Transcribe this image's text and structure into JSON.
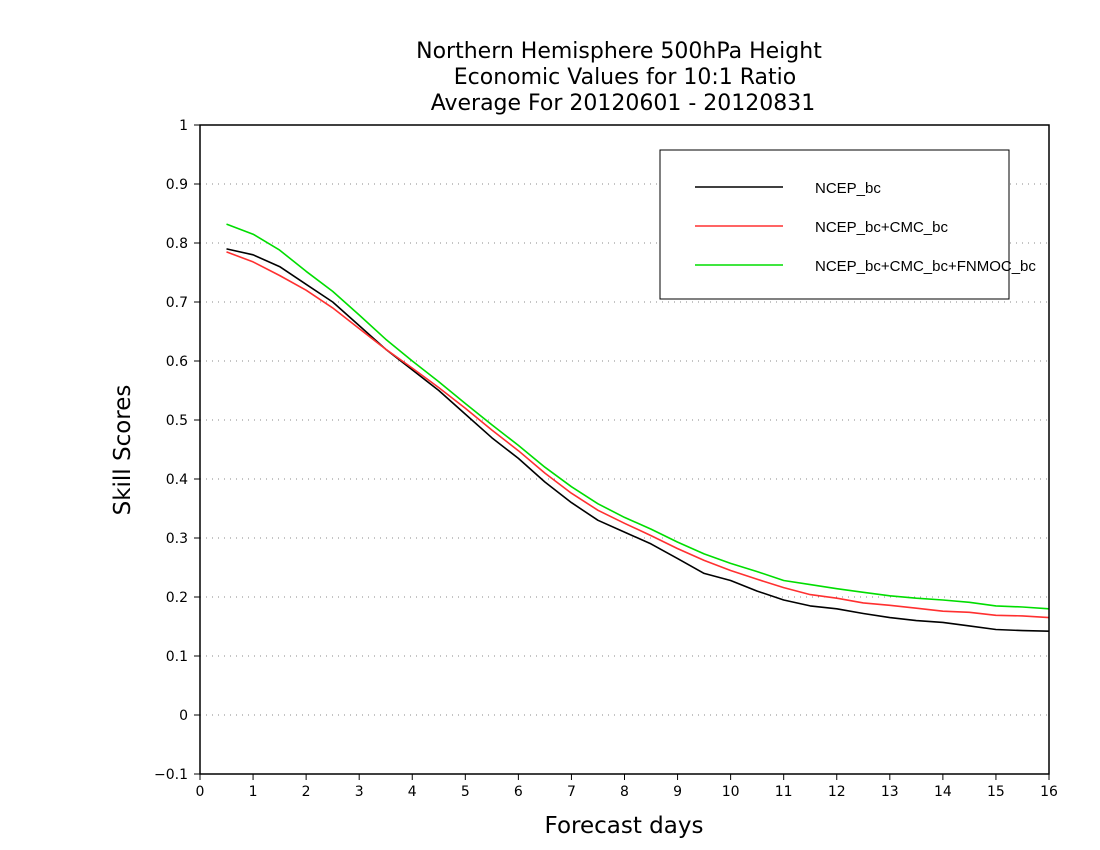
{
  "chart_data": {
    "type": "line",
    "title_lines": [
      "Northern Hemisphere 500hPa Height",
      "Economic Values for 10:1 Ratio",
      "Average For 20120601 - 20120831"
    ],
    "xlabel": "Forecast days",
    "ylabel": "Skill Scores",
    "xlim": [
      0,
      16
    ],
    "ylim": [
      -0.1,
      1
    ],
    "xticks": [
      "0",
      "1",
      "2",
      "3",
      "4",
      "5",
      "6",
      "7",
      "8",
      "9",
      "10",
      "11",
      "12",
      "13",
      "14",
      "15",
      "16"
    ],
    "yticks": [
      "−0.1",
      "0",
      "0.1",
      "0.2",
      "0.3",
      "0.4",
      "0.5",
      "0.6",
      "0.7",
      "0.8",
      "0.9",
      "1"
    ],
    "grid": true,
    "legend_position": "top-right",
    "x": [
      0.5,
      1,
      1.5,
      2,
      2.5,
      3,
      3.5,
      4,
      4.5,
      5,
      5.5,
      6,
      6.5,
      7,
      7.5,
      8,
      8.5,
      9,
      9.5,
      10,
      10.5,
      11,
      11.5,
      12,
      12.5,
      13,
      13.5,
      14,
      14.5,
      15,
      15.5,
      16
    ],
    "series": [
      {
        "name": "NCEP_bc",
        "color": "#000000",
        "values": [
          0.79,
          0.78,
          0.76,
          0.73,
          0.7,
          0.66,
          0.62,
          0.585,
          0.55,
          0.51,
          0.47,
          0.435,
          0.395,
          0.36,
          0.33,
          0.31,
          0.29,
          0.265,
          0.24,
          0.228,
          0.21,
          0.195,
          0.185,
          0.18,
          0.172,
          0.165,
          0.16,
          0.157,
          0.151,
          0.145,
          0.143,
          0.142
        ]
      },
      {
        "name": "NCEP_bc+CMC_bc",
        "color": "#ff3030",
        "values": [
          0.785,
          0.768,
          0.745,
          0.72,
          0.69,
          0.655,
          0.62,
          0.588,
          0.555,
          0.52,
          0.483,
          0.448,
          0.41,
          0.376,
          0.347,
          0.325,
          0.304,
          0.282,
          0.262,
          0.245,
          0.23,
          0.216,
          0.204,
          0.198,
          0.19,
          0.186,
          0.181,
          0.176,
          0.174,
          0.169,
          0.168,
          0.165
        ]
      },
      {
        "name": "NCEP_bc+CMC_bc+FNMOC_bc",
        "color": "#00dd00",
        "values": [
          0.832,
          0.815,
          0.788,
          0.752,
          0.718,
          0.678,
          0.637,
          0.6,
          0.565,
          0.528,
          0.492,
          0.457,
          0.42,
          0.387,
          0.358,
          0.335,
          0.315,
          0.293,
          0.273,
          0.257,
          0.243,
          0.228,
          0.221,
          0.214,
          0.208,
          0.202,
          0.198,
          0.195,
          0.191,
          0.185,
          0.183,
          0.18
        ]
      }
    ]
  }
}
